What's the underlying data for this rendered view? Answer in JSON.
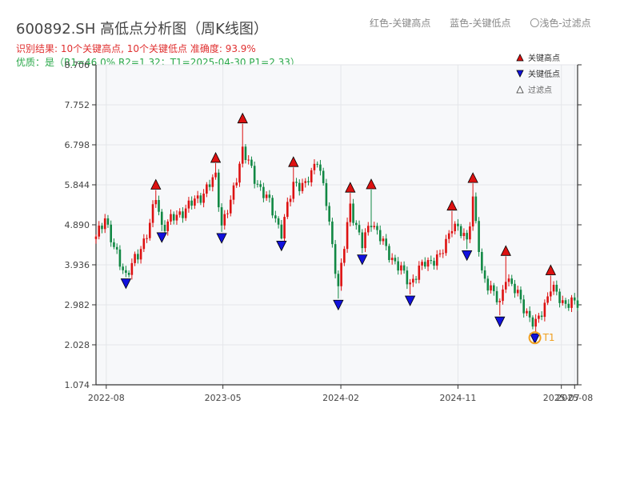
{
  "header": {
    "title": "600892.SH 高低点分析图（周K线图）",
    "result_line": "识别结果: 10个关键高点, 10个关键低点  准确度: 93.9%",
    "quality_line": "优质：是（R1=46.0%  R2=1.32；T1=2025-04-30 P1=2.33）"
  },
  "top_legend": {
    "red": "红色-关键高点",
    "blue": "蓝色-关键低点",
    "light": "〇浅色-过滤点"
  },
  "colors": {
    "up": "#dd1111",
    "down": "#118844",
    "high_marker": "#dd1111",
    "low_marker": "#1111dd",
    "t1_ring": "#f0a020",
    "t1_label": "#f0a020",
    "plot_bg": "#f7f8fa",
    "grid": "#e4e6ea",
    "axis": "#333333"
  },
  "chart_data": {
    "type": "candlestick",
    "title": "600892.SH 高低点分析图（周K线图）",
    "x_range": [
      "2022-07-08",
      "2025-08-08"
    ],
    "x_tick_labels": [
      "2022-08",
      "2023-05",
      "2024-02",
      "2024-11",
      "2025-07",
      "2025-08"
    ],
    "x_tick_dates": [
      "2022-08-01",
      "2023-05-01",
      "2024-02-01",
      "2024-11-01",
      "2025-07-01",
      "2025-08-01"
    ],
    "y_range": [
      1.074,
      8.706
    ],
    "y_ticks": [
      "1.074",
      "2.028",
      "2.982",
      "3.936",
      "4.890",
      "5.844",
      "6.798",
      "7.752",
      "8.706"
    ],
    "grid": true,
    "legend": {
      "position": "top-right",
      "items": [
        {
          "label": "关键高点",
          "marker": "triangle-up",
          "color": "#dd1111"
        },
        {
          "label": "关键低点",
          "marker": "triangle-down",
          "color": "#1111dd"
        },
        {
          "label": "过滤点",
          "marker": "triangle-up-hollow",
          "color": "#666666"
        }
      ]
    },
    "key_highs": [
      {
        "date": "2022-11-25",
        "value": 5.72
      },
      {
        "date": "2023-04-14",
        "value": 6.36
      },
      {
        "date": "2023-06-16",
        "value": 7.3
      },
      {
        "date": "2023-10-13",
        "value": 6.26
      },
      {
        "date": "2024-02-23",
        "value": 5.65
      },
      {
        "date": "2024-04-12",
        "value": 5.73
      },
      {
        "date": "2024-10-18",
        "value": 5.22
      },
      {
        "date": "2024-12-06",
        "value": 5.88
      },
      {
        "date": "2025-02-21",
        "value": 4.14
      },
      {
        "date": "2025-06-06",
        "value": 3.68
      }
    ],
    "key_lows": [
      {
        "date": "2022-09-16",
        "value": 3.64
      },
      {
        "date": "2022-12-09",
        "value": 4.74
      },
      {
        "date": "2023-04-28",
        "value": 4.72
      },
      {
        "date": "2023-09-15",
        "value": 4.54
      },
      {
        "date": "2024-01-26",
        "value": 3.13
      },
      {
        "date": "2024-03-22",
        "value": 4.21
      },
      {
        "date": "2024-07-12",
        "value": 3.23
      },
      {
        "date": "2024-11-22",
        "value": 4.31
      },
      {
        "date": "2025-02-07",
        "value": 2.73
      },
      {
        "date": "2025-04-30",
        "value": 2.33
      }
    ],
    "t1": {
      "label": "T1",
      "date": "2025-04-30",
      "value": 2.33
    },
    "weekly_close_path": [
      [
        "2022-07-08",
        4.55
      ],
      [
        "2022-07-29",
        5.1
      ],
      [
        "2022-08-19",
        4.3
      ],
      [
        "2022-09-16",
        3.7
      ],
      [
        "2022-10-14",
        4.15
      ],
      [
        "2022-11-11",
        4.9
      ],
      [
        "2022-11-25",
        5.55
      ],
      [
        "2022-12-09",
        4.85
      ],
      [
        "2023-01-13",
        5.1
      ],
      [
        "2023-02-17",
        5.4
      ],
      [
        "2023-03-17",
        5.65
      ],
      [
        "2023-04-14",
        6.05
      ],
      [
        "2023-04-28",
        4.9
      ],
      [
        "2023-05-19",
        5.4
      ],
      [
        "2023-06-16",
        6.7
      ],
      [
        "2023-07-14",
        6.0
      ],
      [
        "2023-08-18",
        5.4
      ],
      [
        "2023-09-15",
        4.7
      ],
      [
        "2023-10-13",
        5.9
      ],
      [
        "2023-11-10",
        5.8
      ],
      [
        "2023-12-08",
        6.5
      ],
      [
        "2023-12-29",
        5.4
      ],
      [
        "2024-01-26",
        3.4
      ],
      [
        "2024-02-23",
        5.35
      ],
      [
        "2024-03-22",
        4.4
      ],
      [
        "2024-04-12",
        5.0
      ],
      [
        "2024-05-17",
        4.3
      ],
      [
        "2024-06-21",
        3.8
      ],
      [
        "2024-07-12",
        3.5
      ],
      [
        "2024-08-16",
        4.0
      ],
      [
        "2024-09-20",
        4.1
      ],
      [
        "2024-10-18",
        4.9
      ],
      [
        "2024-11-22",
        4.55
      ],
      [
        "2024-12-06",
        5.5
      ],
      [
        "2024-12-27",
        3.7
      ],
      [
        "2025-01-17",
        3.4
      ],
      [
        "2025-02-07",
        2.95
      ],
      [
        "2025-02-21",
        3.7
      ],
      [
        "2025-03-21",
        3.2
      ],
      [
        "2025-04-30",
        2.45
      ],
      [
        "2025-05-23",
        3.0
      ],
      [
        "2025-06-06",
        3.4
      ],
      [
        "2025-07-04",
        3.05
      ],
      [
        "2025-08-08",
        3.0
      ]
    ]
  }
}
